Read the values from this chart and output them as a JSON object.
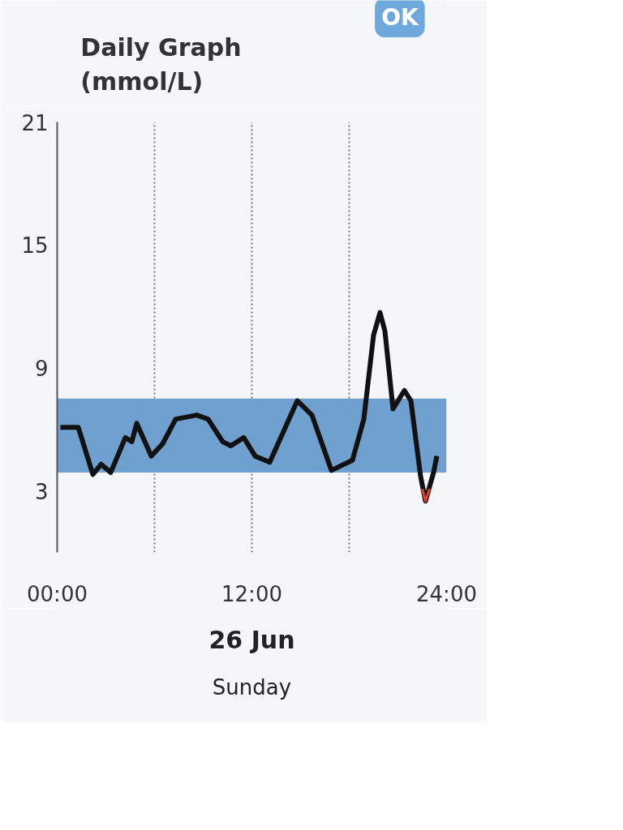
{
  "chart_data": {
    "type": "line",
    "title": "Daily Graph\n(mmol/L)",
    "x": [
      0.2,
      1.3,
      2.2,
      2.7,
      3.3,
      4.2,
      4.6,
      4.9,
      5.8,
      6.5,
      7.3,
      8.6,
      9.3,
      10.2,
      10.7,
      11.5,
      12.2,
      13.1,
      14.8,
      15.7,
      16.9,
      18.2,
      18.9,
      19.5,
      19.9,
      20.2,
      20.7,
      21.4,
      21.8,
      22.4,
      22.7,
      23.2,
      23.4
    ],
    "series": [
      {
        "color": "#111111",
        "values": [
          6.1,
          6.1,
          3.8,
          4.3,
          3.9,
          5.6,
          5.4,
          6.3,
          4.7,
          5.3,
          6.5,
          6.7,
          6.5,
          5.4,
          5.2,
          5.6,
          4.7,
          4.4,
          7.4,
          6.7,
          4.0,
          4.5,
          6.5,
          10.6,
          11.7,
          10.8,
          7.0,
          7.9,
          7.4,
          3.7,
          2.5,
          3.9,
          4.7
        ]
      },
      {
        "color": "#e8402a",
        "x": [
          22.5,
          22.7,
          22.95
        ],
        "values": [
          3.1,
          2.5,
          3.1
        ]
      }
    ],
    "xlim": [
      0,
      24
    ],
    "ylim": [
      0,
      21
    ],
    "xticks": [
      {
        "value": 0,
        "label": "00:00"
      },
      {
        "value": 6,
        "label": null
      },
      {
        "value": 12,
        "label": "12:00"
      },
      {
        "value": 18,
        "label": null
      },
      {
        "value": 24,
        "label": "24:00"
      }
    ],
    "yticks": [
      3,
      9,
      15,
      21
    ],
    "bands": [
      {
        "axis": "y",
        "from": 3.9,
        "to": 7.5,
        "color": "#6fa0cf"
      }
    ],
    "grid": "x",
    "line_style": "solid",
    "annotations": [
      "OK",
      "26 Jun",
      "Sunday"
    ]
  }
}
